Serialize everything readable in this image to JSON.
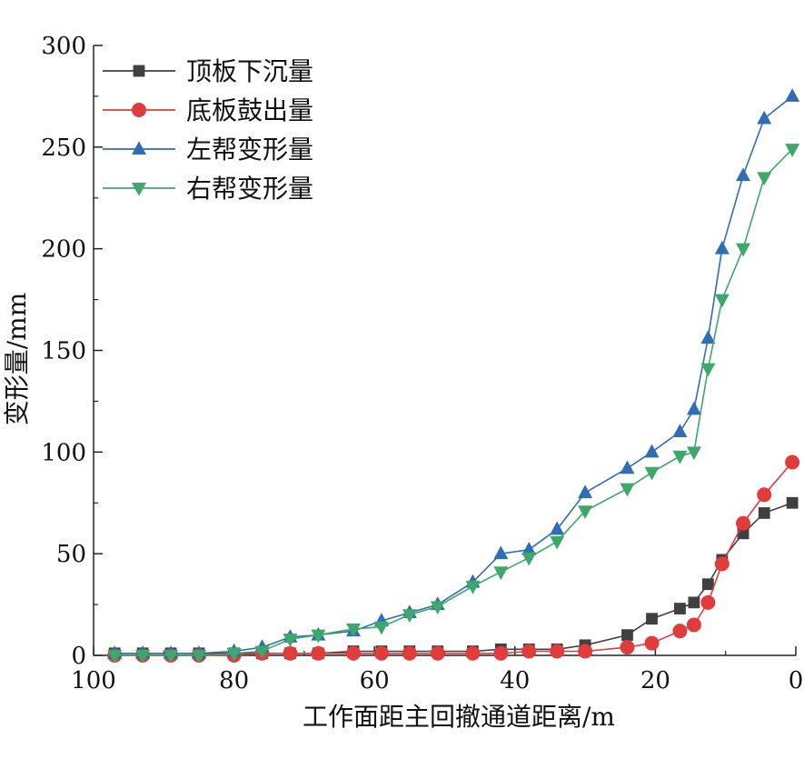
{
  "chart_data": {
    "type": "line",
    "title": "",
    "xlabel": "工作面距主回撤通道距离/m",
    "ylabel": "变形量/mm",
    "xlim": [
      100,
      0
    ],
    "ylim": [
      0,
      300
    ],
    "x_reversed": true,
    "xticks": [
      "100",
      "80",
      "60",
      "40",
      "20",
      "0"
    ],
    "yticks": [
      "0",
      "50",
      "100",
      "150",
      "200",
      "250",
      "300"
    ],
    "grid": false,
    "legend_position": "top-left",
    "series": [
      {
        "name": "顶板下沉量",
        "color": "#404040",
        "marker": "square",
        "x": [
          97,
          93,
          89,
          85,
          80,
          76,
          72,
          68,
          63,
          59,
          55,
          51,
          46,
          42,
          38,
          34,
          30,
          24,
          20.5,
          16.5,
          14.5,
          12.5,
          10.5,
          7.5,
          4.5,
          0.5
        ],
        "y": [
          1,
          1,
          1,
          1,
          1,
          1,
          1,
          1,
          2,
          2,
          2,
          2,
          2,
          3,
          3,
          3,
          5,
          10,
          18,
          23,
          26,
          35,
          47,
          60,
          70,
          75
        ]
      },
      {
        "name": "底板鼓出量",
        "color": "#e03c3c",
        "marker": "circle",
        "x": [
          97,
          93,
          89,
          85,
          80,
          76,
          72,
          68,
          63,
          59,
          55,
          51,
          46,
          42,
          38,
          34,
          30,
          24,
          20.5,
          16.5,
          14.5,
          12.5,
          10.5,
          7.5,
          4.5,
          0.5
        ],
        "y": [
          0,
          0,
          0,
          0,
          0,
          1,
          1,
          1,
          1,
          1,
          1,
          1,
          1,
          1,
          2,
          2,
          2,
          4,
          6,
          12,
          15,
          26,
          45,
          65,
          79,
          95
        ]
      },
      {
        "name": "左帮变形量",
        "color": "#2f6db5",
        "marker": "triangle-up",
        "x": [
          97,
          93,
          89,
          85,
          80,
          76,
          72,
          68,
          63,
          59,
          55,
          51,
          46,
          42,
          38,
          34,
          30,
          24,
          20.5,
          16.5,
          14.5,
          12.5,
          10.5,
          7.5,
          4.5,
          0.5
        ],
        "y": [
          1,
          1,
          1,
          1,
          2,
          4,
          9,
          10,
          12,
          17,
          21,
          25,
          36,
          50,
          52,
          62,
          80,
          92,
          100,
          110,
          121,
          156,
          200,
          236,
          264,
          275
        ]
      },
      {
        "name": "右帮变形量",
        "color": "#3ea86b",
        "marker": "triangle-down",
        "x": [
          97,
          93,
          89,
          85,
          80,
          76,
          72,
          68,
          63,
          59,
          55,
          51,
          46,
          42,
          38,
          34,
          30,
          24,
          20.5,
          16.5,
          14.5,
          12.5,
          10.5,
          7.5,
          4.5,
          0.5
        ],
        "y": [
          0,
          0,
          0,
          0,
          1,
          2,
          8,
          10,
          13,
          14,
          20,
          24,
          34,
          41,
          48,
          56,
          71,
          82,
          90,
          98,
          100,
          141,
          175,
          200,
          235,
          249
        ]
      }
    ]
  }
}
